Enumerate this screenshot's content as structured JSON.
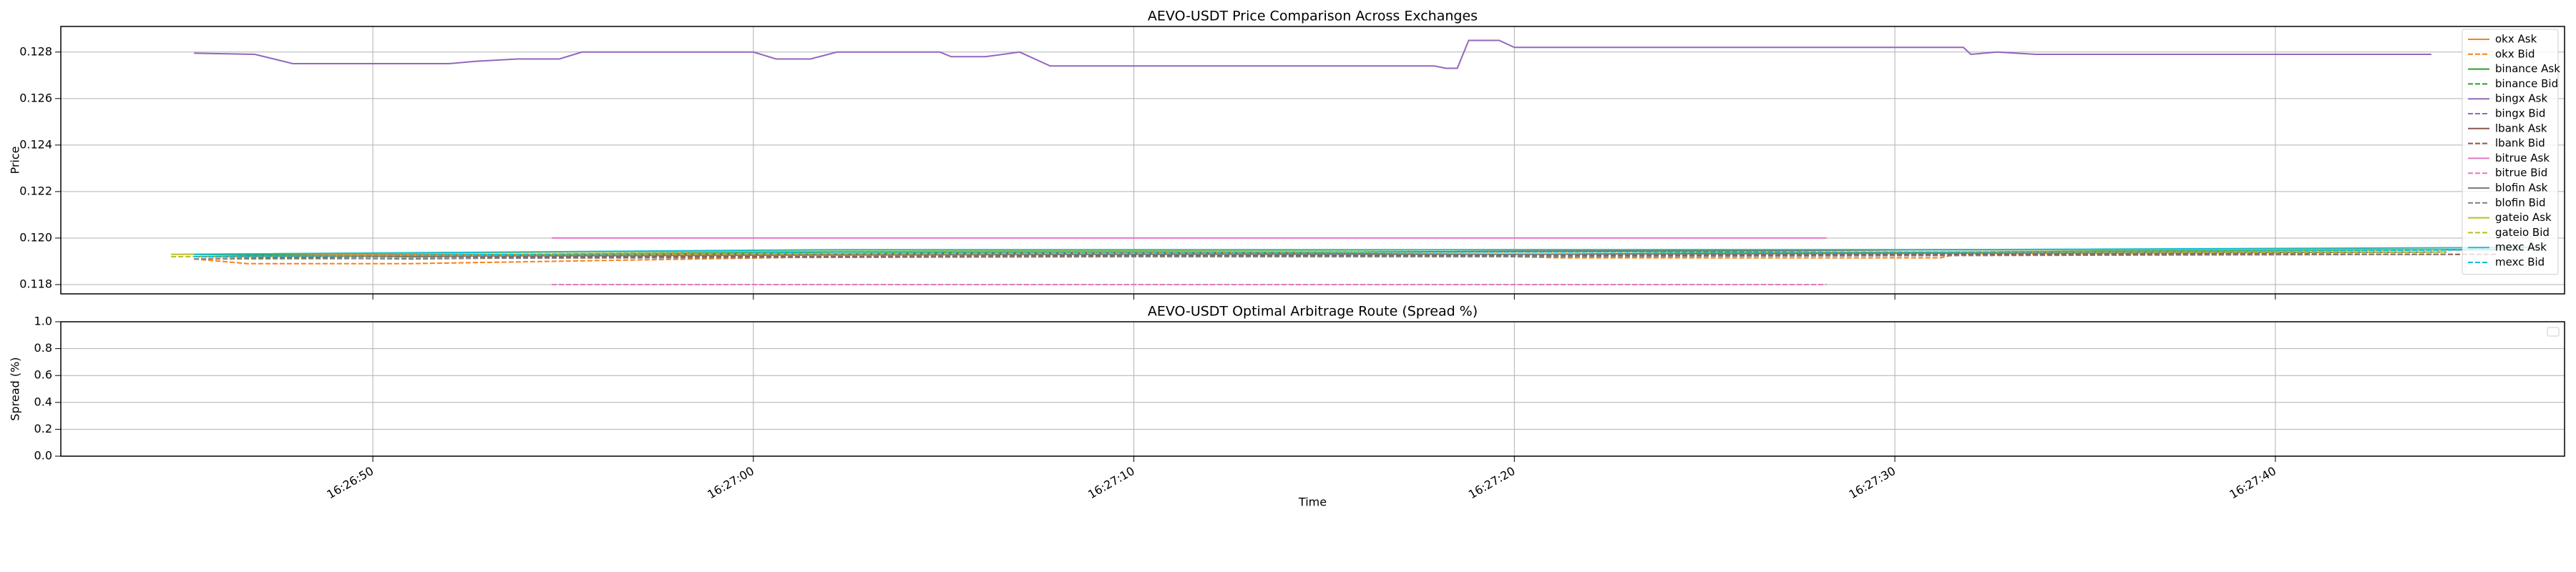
{
  "chart_data": [
    {
      "type": "line",
      "title": "AEVO-USDT Price Comparison Across Exchanges",
      "ylabel": "Price",
      "xlim": [
        "16:26:41.8",
        "16:27:47.6"
      ],
      "xticks": [
        "16:26:50",
        "16:27:00",
        "16:27:10",
        "16:27:20",
        "16:27:30",
        "16:27:40"
      ],
      "ylim": [
        0.1176,
        0.1291
      ],
      "yticks": [
        0.118,
        {
          "value": 0.12,
          "label": "0.120"
        },
        0.122,
        0.124,
        0.126,
        0.128
      ],
      "grid": true,
      "legend": "upper right",
      "series": [
        {
          "name": "okx Ask",
          "color": "#ff7f0e",
          "style": "solid",
          "x": [
            "16:26:45.3",
            "16:26:54.7",
            "16:27:02.2",
            "16:27:20.0",
            "16:27:31.6",
            "16:27:44.5"
          ],
          "values": [
            0.1193,
            0.1193,
            0.1194,
            0.1194,
            0.1195,
            0.1195
          ]
        },
        {
          "name": "okx Bid",
          "color": "#ff7f0e",
          "style": "dashed",
          "x": [
            "16:26:45.3",
            "16:26:46.7",
            "16:26:51.0",
            "16:26:54.7",
            "16:27:02.2",
            "16:27:20.0",
            "16:27:21.2",
            "16:27:31.2",
            "16:27:31.6",
            "16:27:44.5"
          ],
          "values": [
            0.1191,
            0.1189,
            0.1189,
            0.119,
            0.1192,
            0.1192,
            0.11915,
            0.11915,
            0.1193,
            0.1193
          ]
        },
        {
          "name": "binance Ask",
          "color": "#2ca02c",
          "style": "solid",
          "x": [
            "16:26:45.3",
            "16:26:51.0",
            "16:27:02.2",
            "16:27:20.0",
            "16:27:44.5"
          ],
          "values": [
            0.1193,
            0.1192,
            0.1194,
            0.1193,
            0.1195
          ]
        },
        {
          "name": "binance Bid",
          "color": "#2ca02c",
          "style": "dashed",
          "x": [
            "16:26:45.3",
            "16:26:51.0",
            "16:27:02.2",
            "16:27:20.0",
            "16:27:44.5"
          ],
          "values": [
            0.1192,
            0.1191,
            0.1193,
            0.1192,
            0.1194
          ]
        },
        {
          "name": "bingx Ask",
          "color": "#9467bd",
          "style": "solid",
          "x": [
            "16:26:45.3",
            "16:26:46.9",
            "16:26:47.9",
            "16:26:52.0",
            "16:26:52.7",
            "16:26:53.8",
            "16:26:54.9",
            "16:26:55.5",
            "16:27:00.0",
            "16:27:00.6",
            "16:27:01.5",
            "16:27:02.2",
            "16:27:04.9",
            "16:27:05.2",
            "16:27:06.1",
            "16:27:07.0",
            "16:27:07.8",
            "16:27:17.9",
            "16:27:18.2",
            "16:27:18.5",
            "16:27:18.8",
            "16:27:19.6",
            "16:27:20.0",
            "16:27:31.8",
            "16:27:32.0",
            "16:27:32.7",
            "16:27:33.7",
            "16:27:44.1"
          ],
          "values": [
            0.12795,
            0.1279,
            0.1275,
            0.1275,
            0.1276,
            0.1277,
            0.1277,
            0.128,
            0.128,
            0.1277,
            0.1277,
            0.128,
            0.128,
            0.1278,
            0.1278,
            0.128,
            0.1274,
            0.1274,
            0.1273,
            0.1273,
            0.1285,
            0.1285,
            0.1282,
            0.1282,
            0.1279,
            0.128,
            0.1279,
            0.1279
          ]
        },
        {
          "name": "bingx Bid",
          "color": "#9467bd",
          "style": "dashed",
          "x": [
            "16:26:45.3",
            "16:26:51.0",
            "16:27:02.2",
            "16:27:20.0",
            "16:27:44.5"
          ],
          "values": [
            0.1192,
            0.1192,
            0.1193,
            0.1193,
            0.1194
          ]
        },
        {
          "name": "lbank Ask",
          "color": "#8c564b",
          "style": "solid",
          "x": [
            "16:26:45.3",
            "16:27:00.0",
            "16:27:31.6",
            "16:27:45.8"
          ],
          "values": [
            0.1192,
            0.1193,
            0.1195,
            0.1195
          ]
        },
        {
          "name": "lbank Bid",
          "color": "#8c564b",
          "style": "dashed",
          "x": [
            "16:26:45.3",
            "16:27:00.0",
            "16:27:31.6",
            "16:27:45.8"
          ],
          "values": [
            0.1192,
            0.1192,
            0.1193,
            0.1193
          ]
        },
        {
          "name": "bitrue Ask",
          "color": "#e377c2",
          "style": "solid",
          "x": [
            "16:26:54.7",
            "16:27:28.2"
          ],
          "values": [
            0.12,
            0.12
          ]
        },
        {
          "name": "bitrue Bid",
          "color": "#e377c2",
          "style": "dashed",
          "x": [
            "16:26:54.7",
            "16:27:28.2"
          ],
          "values": [
            0.118,
            0.118
          ]
        },
        {
          "name": "blofin Ask",
          "color": "#7f7f7f",
          "style": "solid",
          "x": [
            "16:26:45.3",
            "16:27:10.0",
            "16:27:20.0",
            "16:27:44.5"
          ],
          "values": [
            0.1192,
            0.1193,
            0.1193,
            0.1194
          ]
        },
        {
          "name": "blofin Bid",
          "color": "#7f7f7f",
          "style": "dashed",
          "x": [
            "16:26:45.3",
            "16:27:10.0",
            "16:27:20.0",
            "16:27:44.5"
          ],
          "values": [
            0.1191,
            0.1192,
            0.1192,
            0.1193
          ]
        },
        {
          "name": "gateio Ask",
          "color": "#bcbd22",
          "style": "solid",
          "x": [
            "16:26:44.7",
            "16:26:55.5",
            "16:27:20.0",
            "16:27:44.5"
          ],
          "values": [
            0.1193,
            0.1194,
            0.1195,
            0.1195
          ]
        },
        {
          "name": "gateio Bid",
          "color": "#bcbd22",
          "style": "dashed",
          "x": [
            "16:26:44.7",
            "16:26:55.5",
            "16:27:20.0",
            "16:27:44.5"
          ],
          "values": [
            0.1192,
            0.1193,
            0.1194,
            0.1194
          ]
        },
        {
          "name": "mexc Ask",
          "color": "#17becf",
          "style": "solid",
          "x": [
            "16:26:45.3",
            "16:27:02.2",
            "16:27:31.6",
            "16:27:46.9"
          ],
          "values": [
            0.1193,
            0.1195,
            0.1195,
            0.1196
          ]
        },
        {
          "name": "mexc Bid",
          "color": "#17becf",
          "style": "dashed",
          "x": [
            "16:26:45.3",
            "16:27:02.2",
            "16:27:31.6",
            "16:27:46.9"
          ],
          "values": [
            0.1192,
            0.1194,
            0.1194,
            0.1195
          ]
        }
      ]
    },
    {
      "type": "line",
      "title": "AEVO-USDT Optimal Arbitrage Route (Spread %)",
      "ylabel": "Spread (%)",
      "xlabel": "Time",
      "xlim": [
        "16:26:41.8",
        "16:27:47.6"
      ],
      "xticks": [
        "16:26:50",
        "16:27:00",
        "16:27:10",
        "16:27:20",
        "16:27:30",
        "16:27:40"
      ],
      "ylim": [
        0,
        1
      ],
      "yticks": [
        {
          "value": 0,
          "label": "0.0"
        },
        0.2,
        0.4,
        0.6,
        0.8,
        {
          "value": 1,
          "label": "1.0"
        }
      ],
      "grid": true,
      "series": []
    }
  ]
}
